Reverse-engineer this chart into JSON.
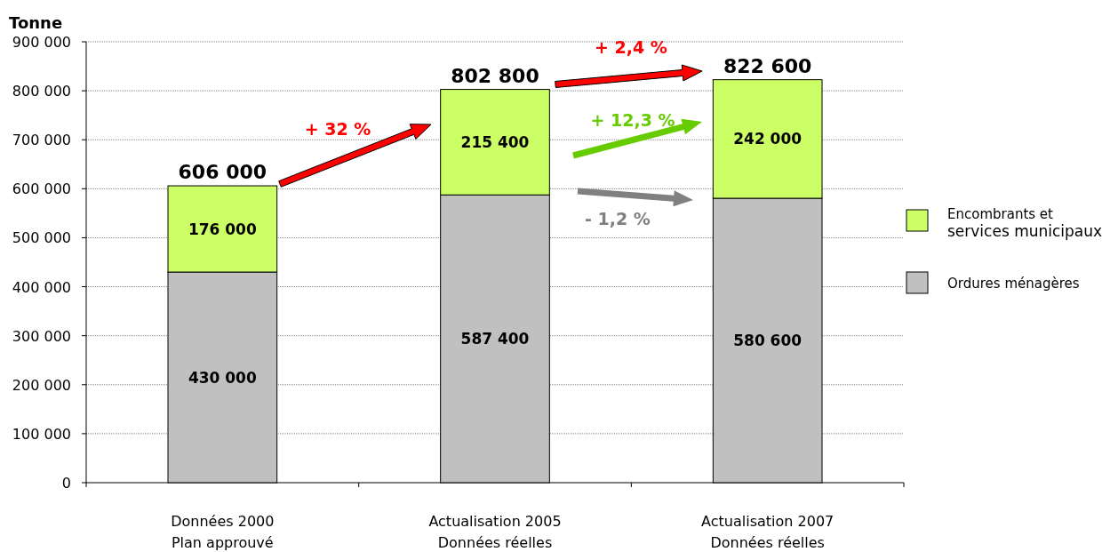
{
  "chart_data": {
    "type": "bar",
    "stacked": true,
    "ylabel": "Tonne",
    "categories": [
      "Données 2000 Plan approuvé",
      "Actualisation 2005 Données réelles",
      "Actualisation 2007 Données réelles"
    ],
    "series": [
      {
        "name": "Ordures ménagères",
        "color": "#c0c0c0",
        "values": [
          430000,
          587400,
          580600
        ],
        "value_labels": [
          "430 000",
          "587 400",
          "580 600"
        ]
      },
      {
        "name": "Encombrants et services municipaux",
        "color": "#ccff66",
        "values": [
          176000,
          215400,
          242000
        ],
        "value_labels": [
          "176 000",
          "215 400",
          "242 000"
        ]
      }
    ],
    "totals": [
      "606 000",
      "802 800",
      "822 600"
    ],
    "annotations": [
      "+ 32 %",
      "+ 2,4 %",
      "+ 12,3 %",
      "- 1,2 %"
    ],
    "ylim": [
      0,
      900000
    ],
    "yticks": [
      0,
      {
        "value": 100000,
        "label": "100 000"
      },
      {
        "value": 200000,
        "label": "200 000"
      },
      {
        "value": 300000,
        "label": "300 000"
      },
      {
        "value": 400000,
        "label": "400 000"
      },
      {
        "value": 500000,
        "label": "500 000"
      },
      {
        "value": 600000,
        "label": "600 000"
      },
      {
        "value": 700000,
        "label": "700 000"
      },
      {
        "value": 800000,
        "label": "800 000"
      },
      {
        "value": 900000,
        "label": "900 000"
      }
    ],
    "grid": "y",
    "legend": "right"
  }
}
